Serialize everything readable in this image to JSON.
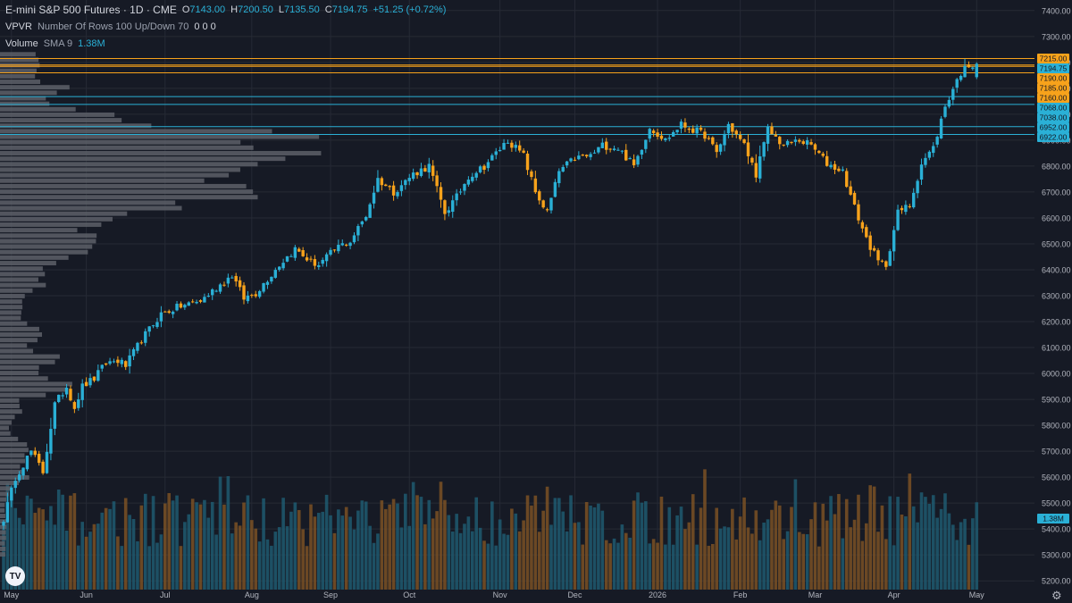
{
  "header": {
    "symbol_title": "E-mini S&P 500 Futures · 1D · CME",
    "ohlc": [
      {
        "label": "O",
        "value": "7143.00"
      },
      {
        "label": "H",
        "value": "7200.50"
      },
      {
        "label": "L",
        "value": "7135.50"
      },
      {
        "label": "C",
        "value": "7194.75"
      }
    ],
    "change": "+51.25 (+0.72%)",
    "vpvr_name": "VPVR",
    "vpvr_params": "Number Of Rows 100 Up/Down 70",
    "vpvr_values": "0  0  0",
    "volume_name": "Volume",
    "volume_params": "SMA 9",
    "volume_value": "1.38M"
  },
  "icons": {
    "logo": "tradingview-logo-icon",
    "settings": "gear-icon",
    "logo_text": "TV",
    "settings_glyph": "⚙"
  },
  "colors": {
    "up": "#2ab0d6",
    "down": "#f7a21b",
    "volume_up": "#1f5b70",
    "volume_down": "#7a5124",
    "profile": "#5d6068",
    "hline_orange": "#f7a21b",
    "hline_cyan": "#2ab0d6",
    "grid": "#262a35",
    "axis_text": "#b2b5be"
  },
  "chart_data": {
    "type": "candlestick",
    "y_range": [
      5180,
      7420
    ],
    "y_ticks": [
      5200,
      5300,
      5400,
      5500,
      5600,
      5700,
      5800,
      5900,
      6000,
      6100,
      6200,
      6300,
      6400,
      6500,
      6600,
      6700,
      6800,
      6900,
      7000,
      7100,
      7200,
      7300,
      7400
    ],
    "x_labels": [
      {
        "label": "May",
        "index": 2
      },
      {
        "label": "Jun",
        "index": 21
      },
      {
        "label": "Jul",
        "index": 41
      },
      {
        "label": "Aug",
        "index": 63
      },
      {
        "label": "Sep",
        "index": 83
      },
      {
        "label": "Oct",
        "index": 103
      },
      {
        "label": "Nov",
        "index": 126
      },
      {
        "label": "Dec",
        "index": 145
      },
      {
        "label": "2026",
        "index": 166
      },
      {
        "label": "Feb",
        "index": 187
      },
      {
        "label": "Mar",
        "index": 206
      },
      {
        "label": "Apr",
        "index": 226
      },
      {
        "label": "May",
        "index": 247
      }
    ],
    "h_lines": [
      {
        "price": 7215.0,
        "label": "7215.00",
        "color": "orange"
      },
      {
        "price": 7194.75,
        "label": "7194.75",
        "color": "cyan",
        "last_price": true
      },
      {
        "price": 7190.0,
        "label": "7190.00",
        "color": "orange"
      },
      {
        "price": 7185.0,
        "label": "7185.00",
        "color": "orange"
      },
      {
        "price": 7160.0,
        "label": "7160.00",
        "color": "orange"
      },
      {
        "price": 7068.0,
        "label": "7068.00",
        "color": "cyan"
      },
      {
        "price": 7038.0,
        "label": "7038.00",
        "color": "cyan"
      },
      {
        "price": 6952.0,
        "label": "6952.00",
        "color": "cyan"
      },
      {
        "price": 6922.0,
        "label": "6922.00",
        "color": "cyan"
      }
    ],
    "volume_label": "1.38M",
    "anchors": [
      [
        0,
        5440
      ],
      [
        3,
        5600
      ],
      [
        7,
        5700
      ],
      [
        10,
        5620
      ],
      [
        13,
        5880
      ],
      [
        16,
        5950
      ],
      [
        18,
        5870
      ],
      [
        20,
        5950
      ],
      [
        23,
        5980
      ],
      [
        26,
        6040
      ],
      [
        29,
        6050
      ],
      [
        31,
        6030
      ],
      [
        35,
        6130
      ],
      [
        40,
        6230
      ],
      [
        45,
        6260
      ],
      [
        50,
        6280
      ],
      [
        54,
        6330
      ],
      [
        58,
        6380
      ],
      [
        61,
        6290
      ],
      [
        64,
        6310
      ],
      [
        70,
        6420
      ],
      [
        74,
        6480
      ],
      [
        78,
        6430
      ],
      [
        80,
        6420
      ],
      [
        85,
        6490
      ],
      [
        88,
        6510
      ],
      [
        92,
        6610
      ],
      [
        95,
        6750
      ],
      [
        99,
        6700
      ],
      [
        104,
        6770
      ],
      [
        108,
        6800
      ],
      [
        112,
        6620
      ],
      [
        115,
        6680
      ],
      [
        118,
        6760
      ],
      [
        122,
        6800
      ],
      [
        125,
        6850
      ],
      [
        128,
        6900
      ],
      [
        132,
        6840
      ],
      [
        135,
        6700
      ],
      [
        138,
        6620
      ],
      [
        141,
        6780
      ],
      [
        145,
        6830
      ],
      [
        149,
        6840
      ],
      [
        152,
        6880
      ],
      [
        156,
        6870
      ],
      [
        160,
        6800
      ],
      [
        164,
        6950
      ],
      [
        168,
        6900
      ],
      [
        172,
        6960
      ],
      [
        175,
        6940
      ],
      [
        178,
        6920
      ],
      [
        181,
        6850
      ],
      [
        184,
        6960
      ],
      [
        188,
        6880
      ],
      [
        191,
        6770
      ],
      [
        194,
        6940
      ],
      [
        198,
        6880
      ],
      [
        202,
        6900
      ],
      [
        205,
        6880
      ],
      [
        209,
        6810
      ],
      [
        213,
        6780
      ],
      [
        216,
        6640
      ],
      [
        219,
        6520
      ],
      [
        222,
        6430
      ],
      [
        224,
        6420
      ],
      [
        227,
        6620
      ],
      [
        230,
        6650
      ],
      [
        233,
        6810
      ],
      [
        236,
        6870
      ],
      [
        239,
        7030
      ],
      [
        241,
        7100
      ],
      [
        243,
        7160
      ],
      [
        245,
        7190
      ],
      [
        247,
        7195
      ]
    ],
    "last_bar": {
      "open": 7143.0,
      "high": 7200.5,
      "low": 7135.5,
      "close": 7194.75
    },
    "volume_profile": {
      "rows": 100,
      "peaks": [
        {
          "price": 7200,
          "strength": 0.15
        },
        {
          "price": 7100,
          "strength": 0.2
        },
        {
          "price": 7000,
          "strength": 0.3
        },
        {
          "price": 6930,
          "strength": 0.55
        },
        {
          "price": 6880,
          "strength": 1.0
        },
        {
          "price": 6840,
          "strength": 0.85
        },
        {
          "price": 6780,
          "strength": 0.9
        },
        {
          "price": 6700,
          "strength": 0.9
        },
        {
          "price": 6620,
          "strength": 0.5
        },
        {
          "price": 6530,
          "strength": 0.32
        },
        {
          "price": 6450,
          "strength": 0.28
        },
        {
          "price": 6350,
          "strength": 0.15
        },
        {
          "price": 6250,
          "strength": 0.08
        },
        {
          "price": 6150,
          "strength": 0.12
        },
        {
          "price": 6050,
          "strength": 0.18
        },
        {
          "price": 5950,
          "strength": 0.22
        },
        {
          "price": 5850,
          "strength": 0.05
        },
        {
          "price": 5700,
          "strength": 0.1
        },
        {
          "price": 5600,
          "strength": 0.08
        }
      ]
    }
  }
}
